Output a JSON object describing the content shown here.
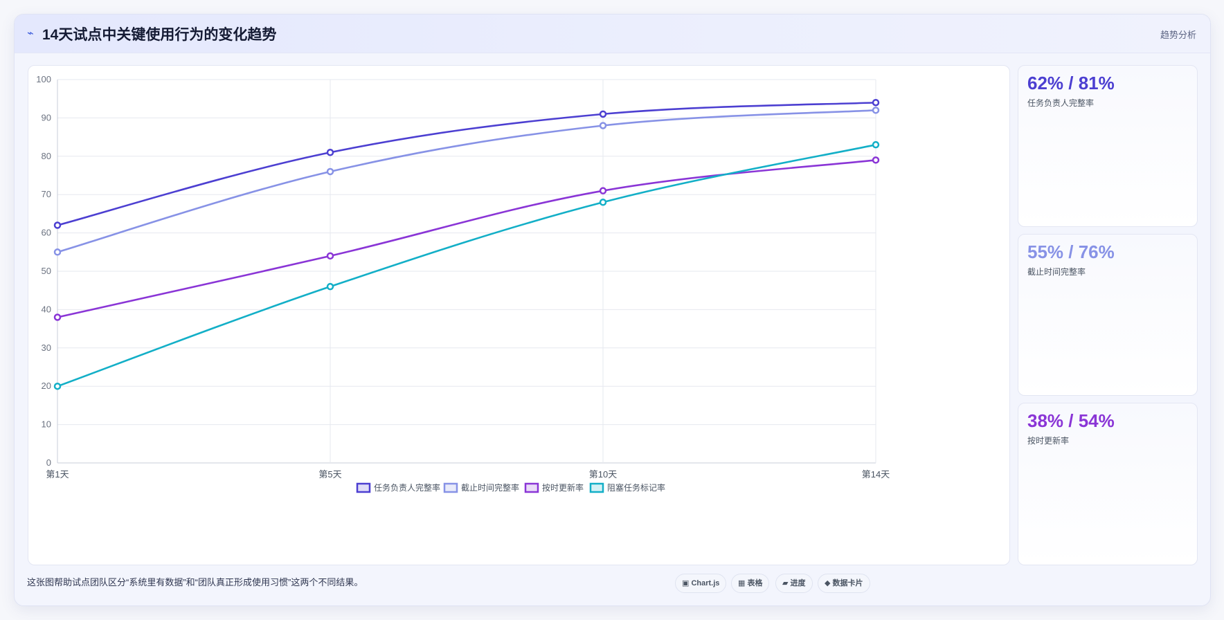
{
  "header": {
    "icon": "lightning-icon",
    "title": "14天试点中关键使用行为的变化趋势",
    "tag": "趋势分析"
  },
  "chart_data": {
    "type": "line",
    "title": "",
    "xlabel": "",
    "ylabel": "",
    "ylim": [
      0,
      100
    ],
    "yticks": [
      0,
      10,
      20,
      30,
      40,
      50,
      60,
      70,
      80,
      90,
      100
    ],
    "grid": true,
    "legend_position": "bottom",
    "categories": [
      "第1天",
      "第5天",
      "第10天",
      "第14天"
    ],
    "series": [
      {
        "name": "任务负责人完整率",
        "color": "#4c3fd1",
        "values": [
          62,
          81,
          91,
          94
        ]
      },
      {
        "name": "截止时间完整率",
        "color": "#8792e6",
        "values": [
          55,
          76,
          88,
          92
        ]
      },
      {
        "name": "按时更新率",
        "color": "#8a35d6",
        "values": [
          38,
          54,
          71,
          79
        ]
      },
      {
        "name": "阻塞任务标记率",
        "color": "#13afc7",
        "values": [
          20,
          46,
          68,
          83
        ]
      }
    ]
  },
  "kpis": [
    {
      "value": "62% / 81%",
      "label": "任务负责人完整率",
      "color": "#4c3fd1"
    },
    {
      "value": "55% / 76%",
      "label": "截止时间完整率",
      "color": "#8792e6"
    },
    {
      "value": "38% / 54%",
      "label": "按时更新率",
      "color": "#8a35d6"
    }
  ],
  "footer": {
    "note": "这张图帮助试点团队区分“系统里有数据”和“团队真正形成使用习惯”这两个不同结果。",
    "chips": [
      {
        "label": "▣ Chart.js"
      },
      {
        "label": "▦ 表格"
      },
      {
        "label": "▰ 进度"
      },
      {
        "label": "◆ 数据卡片"
      }
    ]
  }
}
